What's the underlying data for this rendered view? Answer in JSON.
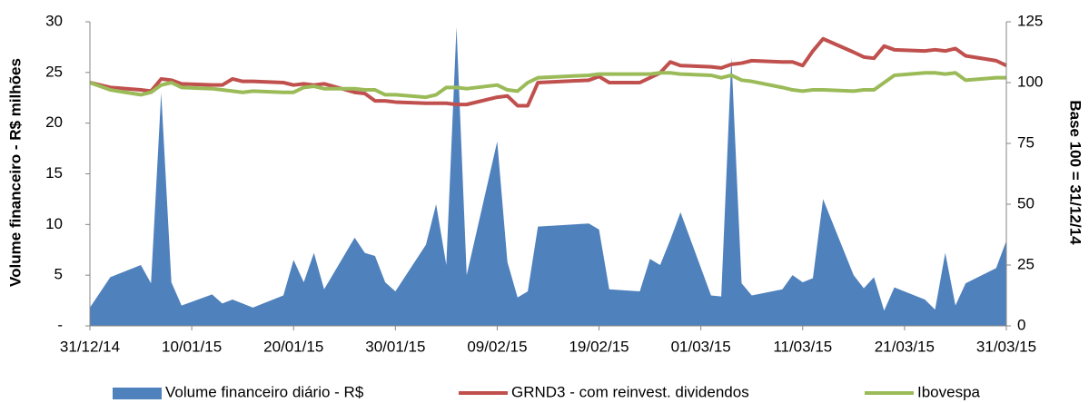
{
  "chart_data": {
    "type": "area-line",
    "ylabel": "Volume financeiro - R$ milhões",
    "y2label": "Base 100 = 31/12/14",
    "x": [
      "2014-12-31",
      "2015-01-02",
      "2015-01-05",
      "2015-01-06",
      "2015-01-07",
      "2015-01-08",
      "2015-01-09",
      "2015-01-12",
      "2015-01-13",
      "2015-01-14",
      "2015-01-15",
      "2015-01-16",
      "2015-01-19",
      "2015-01-20",
      "2015-01-21",
      "2015-01-22",
      "2015-01-23",
      "2015-01-26",
      "2015-01-27",
      "2015-01-28",
      "2015-01-29",
      "2015-01-30",
      "2015-02-02",
      "2015-02-03",
      "2015-02-04",
      "2015-02-05",
      "2015-02-06",
      "2015-02-09",
      "2015-02-10",
      "2015-02-11",
      "2015-02-12",
      "2015-02-13",
      "2015-02-18",
      "2015-02-19",
      "2015-02-20",
      "2015-02-23",
      "2015-02-24",
      "2015-02-25",
      "2015-02-26",
      "2015-02-27",
      "2015-03-02",
      "2015-03-03",
      "2015-03-04",
      "2015-03-05",
      "2015-03-06",
      "2015-03-09",
      "2015-03-10",
      "2015-03-11",
      "2015-03-12",
      "2015-03-13",
      "2015-03-16",
      "2015-03-17",
      "2015-03-18",
      "2015-03-19",
      "2015-03-20",
      "2015-03-23",
      "2015-03-24",
      "2015-03-25",
      "2015-03-26",
      "2015-03-27",
      "2015-03-30",
      "2015-03-31"
    ],
    "series": [
      {
        "name": "Volume financeiro diário - R$",
        "color": "#4f81bd",
        "kind": "area",
        "values": [
          1.8,
          4.8,
          6.0,
          4.2,
          23,
          4.3,
          2.0,
          3.1,
          2.2,
          2.6,
          2.2,
          1.8,
          3.0,
          6.5,
          4.3,
          7.2,
          3.6,
          8.7,
          7.2,
          6.9,
          4.3,
          3.4,
          8.0,
          12.0,
          6.0,
          29.5,
          5.0,
          18.2,
          6.3,
          2.8,
          3.4,
          9.8,
          10.1,
          9.5,
          3.6,
          3.4,
          6.6,
          6.0,
          8.5,
          11.2,
          3.0,
          2.9,
          26.5,
          4.2,
          3.0,
          3.6,
          5.0,
          4.3,
          4.7,
          12.5,
          5.0,
          3.7,
          4.8,
          1.5,
          3.8,
          2.6,
          1.6,
          7.2,
          2.0,
          4.2,
          5.7,
          8.4
        ]
      },
      {
        "name": "GRND3 - com reinvest. dividendos",
        "color": "#c0504d",
        "kind": "line",
        "axis": "y2",
        "values": [
          100,
          98,
          97,
          96.5,
          101.5,
          101,
          99.5,
          99,
          99,
          101.5,
          100.5,
          100.5,
          100,
          99,
          99.5,
          99,
          99.5,
          96,
          95.5,
          92.5,
          92.5,
          92,
          91.5,
          91.5,
          91.5,
          91,
          91,
          94,
          94.5,
          90.5,
          90.5,
          100,
          101,
          102.5,
          100,
          100,
          102,
          104,
          108.5,
          107,
          106.5,
          106,
          107.5,
          108,
          109,
          108.5,
          108.5,
          107,
          113,
          118,
          112.5,
          110.5,
          110,
          115,
          113.5,
          113,
          113.5,
          113,
          114,
          111,
          109,
          107
        ]
      },
      {
        "name": "Ibovespa",
        "color": "#9bbb59",
        "kind": "line",
        "axis": "y2",
        "values": [
          100,
          97,
          95,
          96,
          99,
          100,
          98,
          97.5,
          97,
          96.5,
          96,
          96.5,
          96,
          96,
          98,
          98.5,
          97.5,
          97.5,
          97,
          97,
          95,
          95,
          94,
          95,
          98,
          98,
          97.5,
          99,
          97,
          96.5,
          100,
          102,
          103,
          103.5,
          103.5,
          103.5,
          103.5,
          104,
          104,
          103.5,
          103,
          102,
          103,
          101,
          100.5,
          98,
          97,
          96.5,
          97,
          97,
          96.5,
          97,
          97,
          100,
          103,
          104,
          104,
          103.5,
          104,
          101,
          102,
          102
        ]
      }
    ],
    "xlim": [
      "2014-12-31",
      "2015-03-31"
    ],
    "xticks": [
      {
        "value": "2014-12-31",
        "label": "31/12/14"
      },
      {
        "value": "2015-01-10",
        "label": "10/01/15"
      },
      {
        "value": "2015-01-20",
        "label": "20/01/15"
      },
      {
        "value": "2015-01-30",
        "label": "30/01/15"
      },
      {
        "value": "2015-02-09",
        "label": "09/02/15"
      },
      {
        "value": "2015-02-19",
        "label": "19/02/15"
      },
      {
        "value": "2015-03-01",
        "label": "01/03/15"
      },
      {
        "value": "2015-03-11",
        "label": "11/03/15"
      },
      {
        "value": "2015-03-21",
        "label": "21/03/15"
      },
      {
        "value": "2015-03-31",
        "label": "31/03/15"
      }
    ],
    "ylim": [
      0,
      30
    ],
    "yticks": [
      {
        "value": 0,
        "label": "-"
      },
      5,
      10,
      15,
      20,
      25,
      30
    ],
    "y2lim": [
      0,
      125
    ],
    "y2ticks": [
      0,
      25,
      50,
      75,
      100,
      125
    ],
    "grid": false,
    "legend": "bottom"
  }
}
